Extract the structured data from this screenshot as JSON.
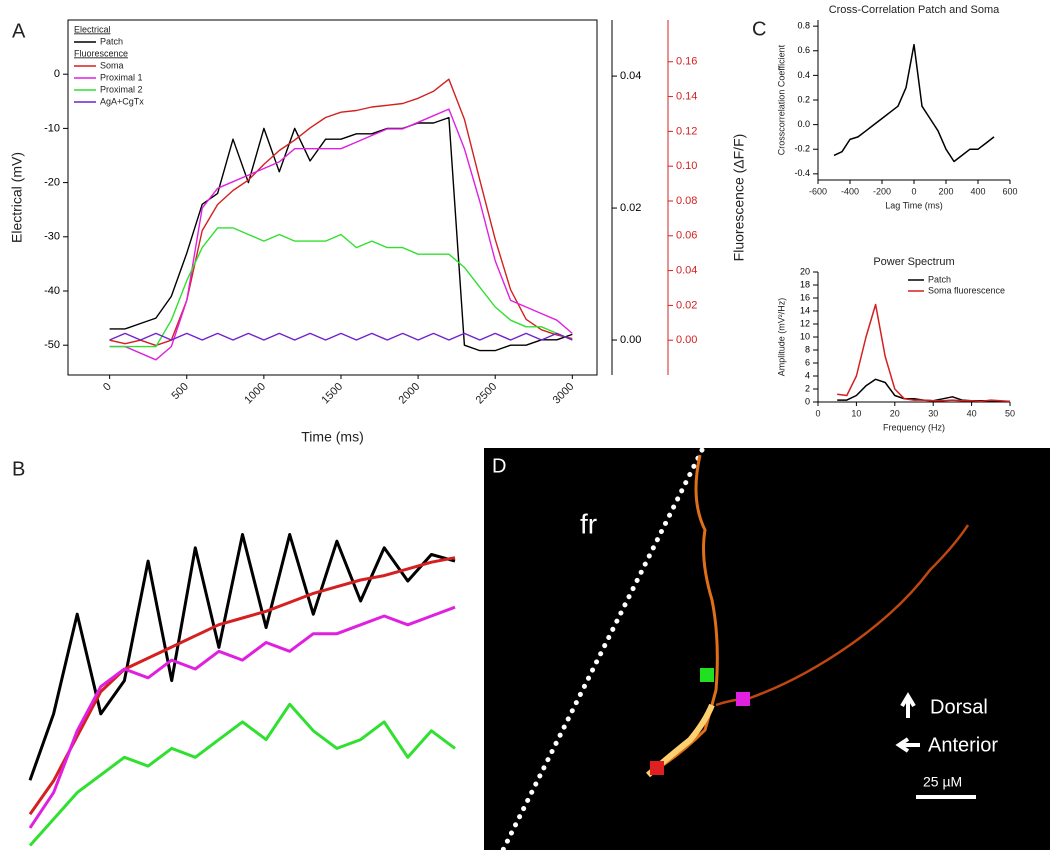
{
  "panels": [
    "A",
    "B",
    "C",
    "D"
  ],
  "chart_data": [
    {
      "type": "line",
      "xlabel": "Time (ms)",
      "ylabel": "Electrical (mV)",
      "y2label": "Fluorescence (ΔF/F)",
      "legend_groups": [
        "Electrical",
        "Fluorescence"
      ],
      "xlim": [
        -270,
        3160
      ],
      "xticks": [
        0,
        500,
        1000,
        1500,
        2000,
        2500,
        3000
      ],
      "ylim": [
        -55.5,
        10
      ],
      "yticks": [
        0,
        -10,
        -20,
        -30,
        -40,
        -50
      ],
      "y2lim": [
        -0.0053,
        0.0485
      ],
      "y2ticks": [
        {
          "value": 0,
          "label": "0.00"
        },
        0.02,
        0.04
      ],
      "y3lim": [
        -0.02,
        0.184
      ],
      "y3color": "#d42020",
      "y3ticks": [
        {
          "value": 0,
          "label": "0.00"
        },
        0.02,
        0.04,
        0.06,
        0.08,
        {
          "value": 0.1,
          "label": "0.10"
        },
        0.12,
        0.14,
        0.16
      ],
      "x": [
        0,
        100,
        200,
        300,
        400,
        500,
        600,
        700,
        800,
        900,
        1000,
        1100,
        1200,
        1300,
        1400,
        1500,
        1600,
        1700,
        1800,
        1900,
        2000,
        2100,
        2200,
        2300,
        2400,
        2500,
        2600,
        2700,
        2800,
        2900,
        3000
      ],
      "series": [
        {
          "name": "Patch",
          "color": "#000000",
          "axis": "y",
          "group": 0,
          "values": [
            -47,
            -47,
            -46,
            -45,
            -41,
            -33,
            -24,
            -22,
            -12,
            -20,
            -10,
            -18,
            -10,
            -16,
            -12,
            -12,
            -11,
            -11,
            -10,
            -10,
            -9,
            -9,
            -8,
            -50,
            -51,
            -51,
            -50,
            -50,
            -49,
            -49,
            -48
          ]
        },
        {
          "name": "Soma",
          "color": "#d42020",
          "axis": "y3",
          "group": 1,
          "values": [
            0,
            -0.002,
            0,
            -0.003,
            0,
            0.023,
            0.063,
            0.078,
            0.086,
            0.092,
            0.101,
            0.109,
            0.115,
            0.122,
            0.128,
            0.131,
            0.132,
            0.134,
            0.135,
            0.136,
            0.139,
            0.143,
            0.15,
            0.127,
            0.092,
            0.058,
            0.029,
            0.012,
            0.006,
            0.003,
            0.001
          ]
        },
        {
          "name": "Proximal 1",
          "color": "#e020e0",
          "axis": "y2",
          "group": 1,
          "values": [
            -0.001,
            -0.001,
            -0.002,
            -0.003,
            -0.001,
            0.006,
            0.02,
            0.023,
            0.024,
            0.025,
            0.026,
            0.027,
            0.029,
            0.029,
            0.029,
            0.029,
            0.03,
            0.031,
            0.032,
            0.032,
            0.033,
            0.034,
            0.035,
            0.029,
            0.021,
            0.012,
            0.006,
            0.005,
            0.004,
            0.003,
            0.001
          ]
        },
        {
          "name": "Proximal 2",
          "color": "#30e030",
          "axis": "y2",
          "group": 1,
          "values": [
            -0.001,
            -0.001,
            -0.001,
            -0.001,
            0.003,
            0.009,
            0.014,
            0.017,
            0.017,
            0.016,
            0.015,
            0.016,
            0.015,
            0.015,
            0.015,
            0.016,
            0.014,
            0.015,
            0.014,
            0.014,
            0.013,
            0.013,
            0.013,
            0.011,
            0.008,
            0.005,
            0.003,
            0.002,
            0.002,
            0.001,
            0
          ]
        },
        {
          "name": "AgA+CgTx",
          "color": "#7020d0",
          "axis": "y2",
          "group": 1,
          "values": [
            0,
            0.001,
            0,
            0.001,
            0,
            0.001,
            0,
            0.001,
            0,
            0.001,
            0,
            0.001,
            0,
            0.001,
            0,
            0.001,
            0,
            0.001,
            0,
            0.001,
            0,
            0.001,
            0,
            0.001,
            0,
            0.001,
            0,
            0.001,
            0,
            0.001,
            0
          ]
        }
      ]
    },
    {
      "type": "line",
      "x": [
        450,
        500,
        550,
        600,
        650,
        700,
        750,
        800,
        850,
        900,
        950,
        1000,
        1050,
        1100,
        1150,
        1200,
        1250,
        1300,
        1350
      ],
      "series": [
        {
          "color": "#000000",
          "axis": "y",
          "values": [
            -45,
            -35,
            -20,
            -35,
            -30,
            -12,
            -30,
            -10,
            -25,
            -8,
            -22,
            -8,
            -20,
            -9,
            -18,
            -10,
            -15,
            -11,
            -12
          ]
        },
        {
          "color": "#d42020",
          "axis": "y3",
          "values": [
            0.005,
            0.02,
            0.04,
            0.06,
            0.07,
            0.075,
            0.08,
            0.085,
            0.09,
            0.093,
            0.096,
            0.1,
            0.104,
            0.107,
            0.11,
            0.112,
            0.115,
            0.118,
            0.12
          ]
        },
        {
          "color": "#e020e0",
          "axis": "y2",
          "values": [
            0.004,
            0.008,
            0.015,
            0.02,
            0.022,
            0.021,
            0.023,
            0.022,
            0.024,
            0.023,
            0.025,
            0.024,
            0.026,
            0.026,
            0.027,
            0.028,
            0.027,
            0.028,
            0.029
          ]
        },
        {
          "color": "#30e030",
          "axis": "y2",
          "values": [
            0.002,
            0.005,
            0.008,
            0.01,
            0.012,
            0.011,
            0.013,
            0.012,
            0.014,
            0.016,
            0.014,
            0.018,
            0.015,
            0.013,
            0.014,
            0.016,
            0.012,
            0.015,
            0.013
          ]
        }
      ]
    },
    {
      "type": "line",
      "title": "Cross-Correlation Patch and Soma",
      "xlabel": "Lag Time (ms)",
      "ylabel": "Crosscorrelation Coefficient",
      "xlim": [
        -600,
        600
      ],
      "xticks": [
        -600,
        -400,
        -200,
        0,
        200,
        400,
        600
      ],
      "ylim": [
        -0.45,
        0.85
      ],
      "yticks": [
        -0.4,
        -0.2,
        {
          "value": 0,
          "label": "0.0"
        },
        0.2,
        0.4,
        0.6,
        0.8
      ],
      "x": [
        -500,
        -450,
        -400,
        -350,
        -300,
        -250,
        -200,
        -150,
        -100,
        -50,
        0,
        50,
        100,
        150,
        200,
        250,
        300,
        350,
        400,
        450,
        500
      ],
      "series": [
        {
          "color": "#000000",
          "values": [
            -0.25,
            -0.22,
            -0.12,
            -0.1,
            -0.05,
            0,
            0.05,
            0.1,
            0.15,
            0.3,
            0.65,
            0.15,
            0.05,
            -0.05,
            -0.2,
            -0.3,
            -0.25,
            -0.2,
            -0.2,
            -0.15,
            -0.1
          ]
        }
      ]
    },
    {
      "type": "line",
      "title": "Power Spectrum",
      "xlabel": "Frequency (Hz)",
      "ylabel": "Amplitude (mV²/Hz)",
      "xlim": [
        0,
        50
      ],
      "xticks": [
        0,
        10,
        20,
        30,
        40,
        50
      ],
      "ylim": [
        0,
        20
      ],
      "yticks": [
        0,
        2,
        4,
        6,
        8,
        10,
        12,
        14,
        16,
        18,
        20
      ],
      "x": [
        5,
        7.5,
        10,
        12.5,
        15,
        17.5,
        20,
        22.5,
        25,
        27.5,
        30,
        32.5,
        35,
        37.5,
        40,
        42.5,
        45,
        47.5,
        50
      ],
      "series": [
        {
          "name": "Patch",
          "color": "#000000",
          "values": [
            0.3,
            0.3,
            1,
            2.5,
            3.5,
            3,
            1,
            0.5,
            0.5,
            0.3,
            0.2,
            0.5,
            0.8,
            0.3,
            0.2,
            0.2,
            0.2,
            0.1,
            0.1
          ]
        },
        {
          "name": "Soma fluorescence",
          "color": "#d42020",
          "values": [
            1.2,
            1,
            4,
            10,
            15,
            7,
            2,
            0.5,
            0.3,
            0.3,
            0.2,
            0.2,
            0.3,
            0.2,
            0.2,
            0.1,
            0.3,
            0.2,
            0.1
          ]
        }
      ]
    }
  ],
  "micrograph": {
    "region": "fr",
    "dorsal": "Dorsal",
    "anterior": "Anterior",
    "scale_bar": "25 µM"
  }
}
